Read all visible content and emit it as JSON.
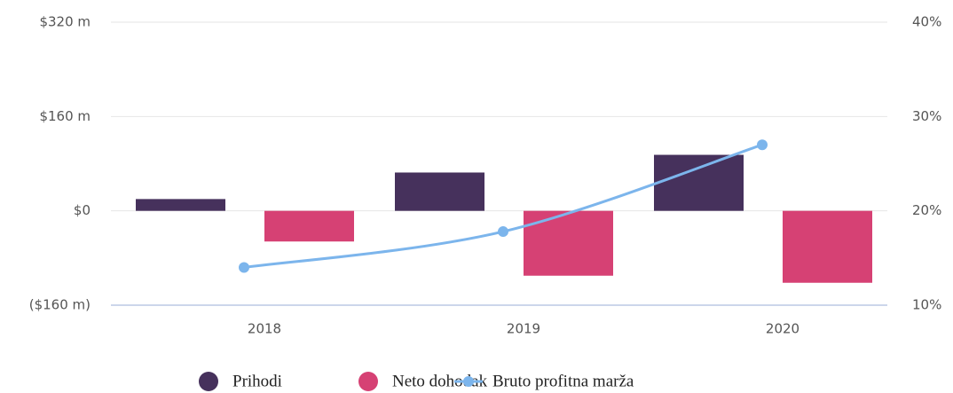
{
  "chart_data": {
    "type": "bar_line",
    "categories": [
      "2018",
      "2019",
      "2020"
    ],
    "series": [
      {
        "name": "Prihodi",
        "color": "#46315c",
        "type": "bar",
        "values": [
          20,
          65,
          95
        ]
      },
      {
        "name": "Neto dohodak",
        "color": "#d64174",
        "type": "bar",
        "values": [
          -52,
          -110,
          -122
        ]
      },
      {
        "name": "Bruto profitna marža",
        "color": "#7cb5ec",
        "type": "line",
        "axis": "y2",
        "values": [
          14.0,
          17.8,
          27.0
        ]
      }
    ],
    "ylim": [
      -160,
      320
    ],
    "yticks": [
      {
        "value": -160,
        "label": "($160 m)"
      },
      {
        "value": 0,
        "label": "$0"
      },
      {
        "value": 160,
        "label": "$160 m"
      },
      {
        "value": 320,
        "label": "$320 m"
      }
    ],
    "y2lim": [
      10,
      40
    ],
    "y2ticks": [
      {
        "value": 10,
        "label": "10%"
      },
      {
        "value": 20,
        "label": "20%"
      },
      {
        "value": 30,
        "label": "30%"
      },
      {
        "value": 40,
        "label": "40%"
      }
    ],
    "grid": true
  }
}
